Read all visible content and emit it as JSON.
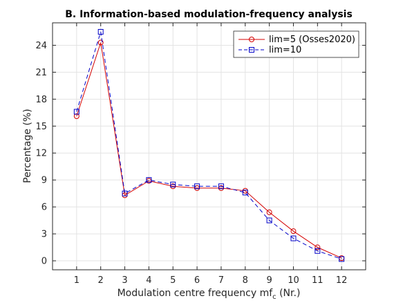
{
  "chart_data": {
    "type": "line",
    "title": "B. Information-based modulation-frequency analysis",
    "xlabel": "Modulation centre frequency mf",
    "xlabel_sub": "c",
    "xlabel_suffix": " (Nr.)",
    "ylabel": "Percentage (%)",
    "x": [
      1,
      2,
      3,
      4,
      5,
      6,
      7,
      8,
      9,
      10,
      11,
      12
    ],
    "xticks": [
      "1",
      "2",
      "3",
      "4",
      "5",
      "6",
      "7",
      "8",
      "9",
      "10",
      "11",
      "12"
    ],
    "yticks": [
      "0",
      "3",
      "6",
      "9",
      "12",
      "15",
      "18",
      "21",
      "24"
    ],
    "xlim": [
      0,
      13
    ],
    "ylim": [
      -1,
      26.5
    ],
    "grid": true,
    "legend_position": "top-right",
    "series": [
      {
        "name": "lim=5 (Osses2020)",
        "color": "#d40000",
        "marker": "circle",
        "line_style": "solid",
        "values": [
          16.1,
          24.3,
          7.3,
          8.9,
          8.3,
          8.1,
          8.1,
          7.8,
          5.4,
          3.3,
          1.5,
          0.3
        ]
      },
      {
        "name": "lim=10",
        "color": "#0000c8",
        "marker": "square",
        "line_style": "dashed",
        "values": [
          16.6,
          25.5,
          7.5,
          9.0,
          8.5,
          8.3,
          8.3,
          7.6,
          4.5,
          2.5,
          1.1,
          0.2
        ]
      }
    ]
  }
}
